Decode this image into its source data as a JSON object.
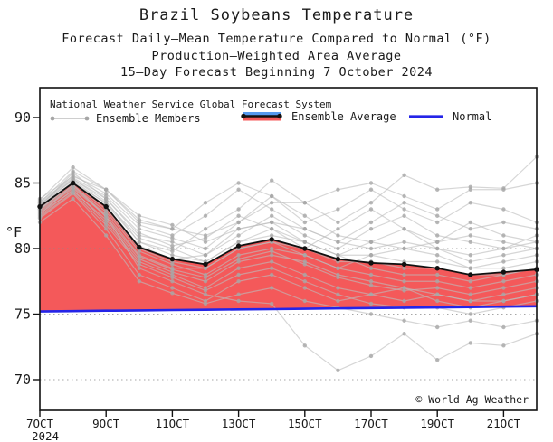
{
  "title": "Brazil Soybeans Temperature",
  "subtitle1": "Forecast Daily–Mean Temperature Compared to Normal (°F)",
  "subtitle2": "Production–Weighted Area Average",
  "subtitle3": "15–Day Forecast Beginning 7 October 2024",
  "y_axis_label": "°F",
  "watermark": "© World Ag Weather",
  "legend": {
    "header": "National Weather Service Global Forecast System",
    "members_label": "Ensemble Members",
    "average_label": "Ensemble Average",
    "normal_label": "Normal"
  },
  "colors": {
    "above_normal_fill": "#f4595a",
    "normal_line": "#2424e8",
    "member_line": "#bdbdbd",
    "member_dot": "#a6a6a6",
    "average_line": "#111111",
    "grid": "#8a8a8a",
    "axis": "#111111"
  },
  "chart_data": {
    "type": "line",
    "title": "Brazil Soybeans Temperature",
    "xlabel": "",
    "ylabel": "°F",
    "ylim": [
      67.7,
      92.3
    ],
    "y_ticks": [
      70,
      75,
      80,
      85,
      90
    ],
    "grid_y": [
      70,
      75,
      80,
      85
    ],
    "x_tick_labels": [
      "7OCT",
      "9OCT",
      "11OCT",
      "13OCT",
      "15OCT",
      "17OCT",
      "19OCT",
      "21OCT"
    ],
    "x_tick_days": [
      0,
      2,
      4,
      6,
      8,
      10,
      12,
      14
    ],
    "x_year_label": "2024",
    "dates": [
      "7OCT",
      "8OCT",
      "9OCT",
      "10OCT",
      "11OCT",
      "12OCT",
      "13OCT",
      "14OCT",
      "15OCT",
      "16OCT",
      "17OCT",
      "18OCT",
      "19OCT",
      "20OCT",
      "21OCT",
      "22OCT"
    ],
    "legend_position": "top-left-inside",
    "grid": "dotted-horizontal",
    "series": {
      "ensemble_average": [
        83.2,
        85.0,
        83.2,
        80.1,
        79.2,
        78.8,
        80.2,
        80.7,
        80.0,
        79.2,
        78.9,
        78.8,
        78.5,
        78.0,
        78.2,
        78.4
      ],
      "normal": [
        75.2,
        75.23,
        75.26,
        75.28,
        75.31,
        75.33,
        75.36,
        75.38,
        75.41,
        75.44,
        75.46,
        75.49,
        75.51,
        75.54,
        75.57,
        75.6
      ],
      "ensemble_members": [
        [
          83.5,
          85.3,
          83.6,
          80.5,
          79.8,
          81.5,
          83.0,
          85.2,
          83.5,
          82.0,
          83.5,
          85.6,
          84.5,
          84.7,
          84.6,
          87.0
        ],
        [
          82.8,
          84.6,
          82.5,
          78.5,
          77.5,
          76.5,
          76.0,
          75.8,
          72.6,
          70.7,
          71.8,
          73.5,
          71.5,
          72.8,
          72.6,
          73.5
        ],
        [
          83.0,
          85.0,
          83.0,
          80.0,
          79.0,
          78.5,
          80.0,
          80.5,
          80.0,
          79.0,
          79.0,
          78.5,
          78.5,
          78.0,
          78.0,
          78.5
        ],
        [
          83.8,
          85.5,
          84.5,
          82.5,
          81.8,
          80.5,
          81.5,
          82.0,
          81.5,
          80.5,
          80.0,
          80.5,
          80.0,
          79.5,
          80.0,
          80.5
        ],
        [
          82.5,
          84.5,
          82.0,
          79.0,
          78.0,
          77.0,
          78.5,
          79.0,
          78.0,
          77.0,
          76.5,
          76.0,
          76.5,
          76.0,
          76.5,
          77.0
        ],
        [
          83.2,
          85.8,
          83.8,
          81.0,
          80.5,
          79.5,
          81.0,
          82.5,
          81.0,
          80.0,
          81.5,
          82.5,
          81.0,
          80.5,
          80.0,
          81.0
        ],
        [
          82.0,
          83.8,
          81.0,
          77.5,
          76.6,
          75.8,
          76.5,
          77.0,
          76.0,
          75.5,
          75.0,
          74.5,
          74.0,
          74.5,
          74.0,
          74.5
        ],
        [
          83.4,
          85.2,
          83.4,
          80.5,
          79.5,
          79.0,
          80.5,
          81.0,
          80.5,
          79.5,
          79.5,
          79.0,
          79.0,
          78.5,
          78.5,
          79.0
        ],
        [
          83.0,
          84.8,
          82.8,
          79.8,
          78.8,
          78.0,
          79.5,
          80.0,
          79.5,
          78.5,
          78.0,
          77.5,
          77.5,
          77.0,
          77.5,
          78.0
        ],
        [
          83.6,
          85.4,
          84.0,
          81.5,
          80.8,
          80.0,
          82.0,
          84.0,
          82.5,
          81.0,
          80.5,
          80.0,
          80.5,
          81.0,
          80.5,
          80.0
        ],
        [
          82.7,
          84.4,
          82.2,
          79.2,
          78.2,
          77.5,
          79.0,
          79.5,
          79.0,
          78.0,
          77.5,
          77.0,
          76.5,
          76.0,
          76.0,
          76.5
        ],
        [
          83.1,
          85.1,
          83.2,
          80.2,
          79.2,
          79.5,
          81.5,
          82.0,
          80.5,
          79.5,
          80.5,
          81.5,
          80.0,
          79.0,
          79.5,
          80.0
        ],
        [
          83.3,
          85.6,
          84.2,
          81.8,
          81.0,
          82.5,
          84.5,
          83.0,
          81.5,
          80.5,
          82.0,
          83.5,
          82.5,
          81.5,
          82.0,
          81.5
        ],
        [
          82.9,
          84.7,
          82.6,
          79.5,
          78.5,
          78.5,
          80.0,
          80.5,
          79.5,
          78.5,
          79.5,
          80.0,
          79.5,
          78.5,
          79.0,
          79.5
        ],
        [
          82.3,
          84.2,
          81.5,
          78.0,
          77.0,
          76.0,
          77.5,
          78.0,
          77.0,
          76.0,
          76.5,
          77.0,
          76.0,
          75.5,
          76.0,
          76.5
        ],
        [
          83.5,
          85.9,
          84.5,
          82.0,
          81.5,
          83.5,
          85.0,
          84.0,
          82.0,
          83.0,
          84.5,
          83.0,
          82.0,
          83.5,
          83.0,
          82.0
        ],
        [
          83.0,
          85.0,
          83.5,
          80.8,
          80.0,
          79.0,
          80.5,
          81.5,
          80.5,
          79.5,
          78.5,
          78.0,
          78.0,
          77.5,
          78.0,
          78.5
        ],
        [
          82.6,
          84.9,
          82.4,
          79.4,
          78.4,
          77.8,
          79.2,
          79.8,
          78.8,
          77.8,
          77.2,
          76.8,
          77.0,
          76.5,
          77.0,
          77.5
        ],
        [
          83.2,
          85.3,
          83.8,
          81.2,
          80.2,
          80.8,
          82.5,
          81.5,
          80.0,
          81.5,
          83.0,
          81.5,
          80.5,
          82.0,
          81.0,
          80.5
        ],
        [
          82.4,
          84.3,
          81.8,
          78.8,
          77.8,
          76.8,
          78.0,
          78.5,
          77.5,
          76.5,
          75.8,
          75.5,
          75.5,
          75.0,
          75.5,
          76.0
        ],
        [
          83.7,
          86.2,
          84.5,
          82.2,
          81.5,
          81.0,
          82.0,
          83.5,
          83.5,
          84.5,
          85.0,
          84.0,
          83.0,
          84.5,
          84.5,
          85.0
        ]
      ]
    }
  }
}
